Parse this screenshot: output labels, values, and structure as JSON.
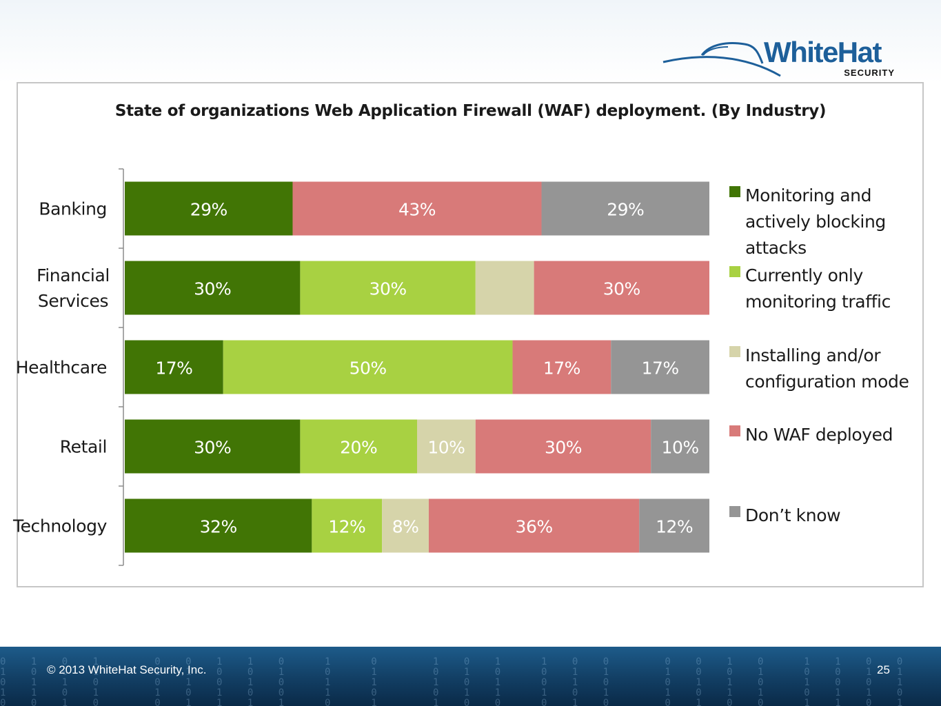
{
  "brand": {
    "logo_main": "WhiteHat",
    "logo_sub": "SECURITY"
  },
  "footer": {
    "copyright": "© 2013 WhiteHat Security, Inc.",
    "page_number": "25"
  },
  "chart_data": {
    "type": "bar",
    "orientation": "horizontal",
    "stacked": true,
    "title": "State of organizations Web Application Firewall (WAF) deployment. (By Industry)",
    "categories": [
      "Banking",
      "Financial Services",
      "Healthcare",
      "Retail",
      "Technology"
    ],
    "series": [
      {
        "name": "Monitoring and actively blocking attacks",
        "color": "#417505",
        "values": [
          29,
          30,
          17,
          30,
          32
        ],
        "labels": [
          "29%",
          "30%",
          "17%",
          "30%",
          "32%"
        ]
      },
      {
        "name": "Currently only monitoring traffic",
        "color": "#a8d142",
        "values": [
          0,
          30,
          50,
          20,
          12
        ],
        "labels": [
          "",
          "30%",
          "50%",
          "20%",
          "12%"
        ]
      },
      {
        "name": "Installing and/or configuration mode",
        "color": "#d6d4aa",
        "values": [
          0,
          10,
          0,
          10,
          8
        ],
        "labels": [
          "",
          "",
          "",
          "10%",
          "8%"
        ]
      },
      {
        "name": "No WAF deployed",
        "color": "#d87a79",
        "values": [
          43,
          30,
          17,
          30,
          36
        ],
        "labels": [
          "43%",
          "30%",
          "17%",
          "30%",
          "36%"
        ]
      },
      {
        "name": "Don’t know",
        "color": "#959595",
        "values": [
          29,
          0,
          17,
          10,
          12
        ],
        "labels": [
          "29%",
          "",
          "17%",
          "10%",
          "12%"
        ]
      }
    ],
    "xlim": [
      0,
      100
    ],
    "grid": false,
    "legend_position": "right"
  }
}
